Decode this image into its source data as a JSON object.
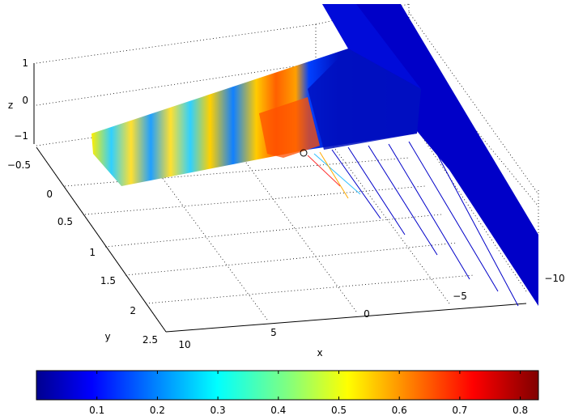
{
  "chart_data": {
    "type": "surface3d",
    "title": "",
    "xlabel": "x",
    "ylabel": "y",
    "zlabel": "z",
    "x_ticks": [
      "10",
      "5",
      "0",
      "−5",
      "−10"
    ],
    "y_ticks": [
      "−0.5",
      "0",
      "0.5",
      "1",
      "1.5",
      "2",
      "2.5"
    ],
    "z_ticks": [
      "1",
      "0",
      "−1"
    ],
    "xlim": [
      -12,
      10
    ],
    "ylim": [
      -0.7,
      2.6
    ],
    "zlim": [
      -1,
      1
    ],
    "grid": true,
    "colormap": "jet",
    "colorbar": {
      "location": "bottom",
      "range": [
        0,
        0.83
      ],
      "ticks": [
        "0.1",
        "0.2",
        "0.3",
        "0.4",
        "0.5",
        "0.6",
        "0.7",
        "0.8"
      ]
    },
    "marker": {
      "label": "∘",
      "x": 1,
      "y": 0.1
    }
  }
}
